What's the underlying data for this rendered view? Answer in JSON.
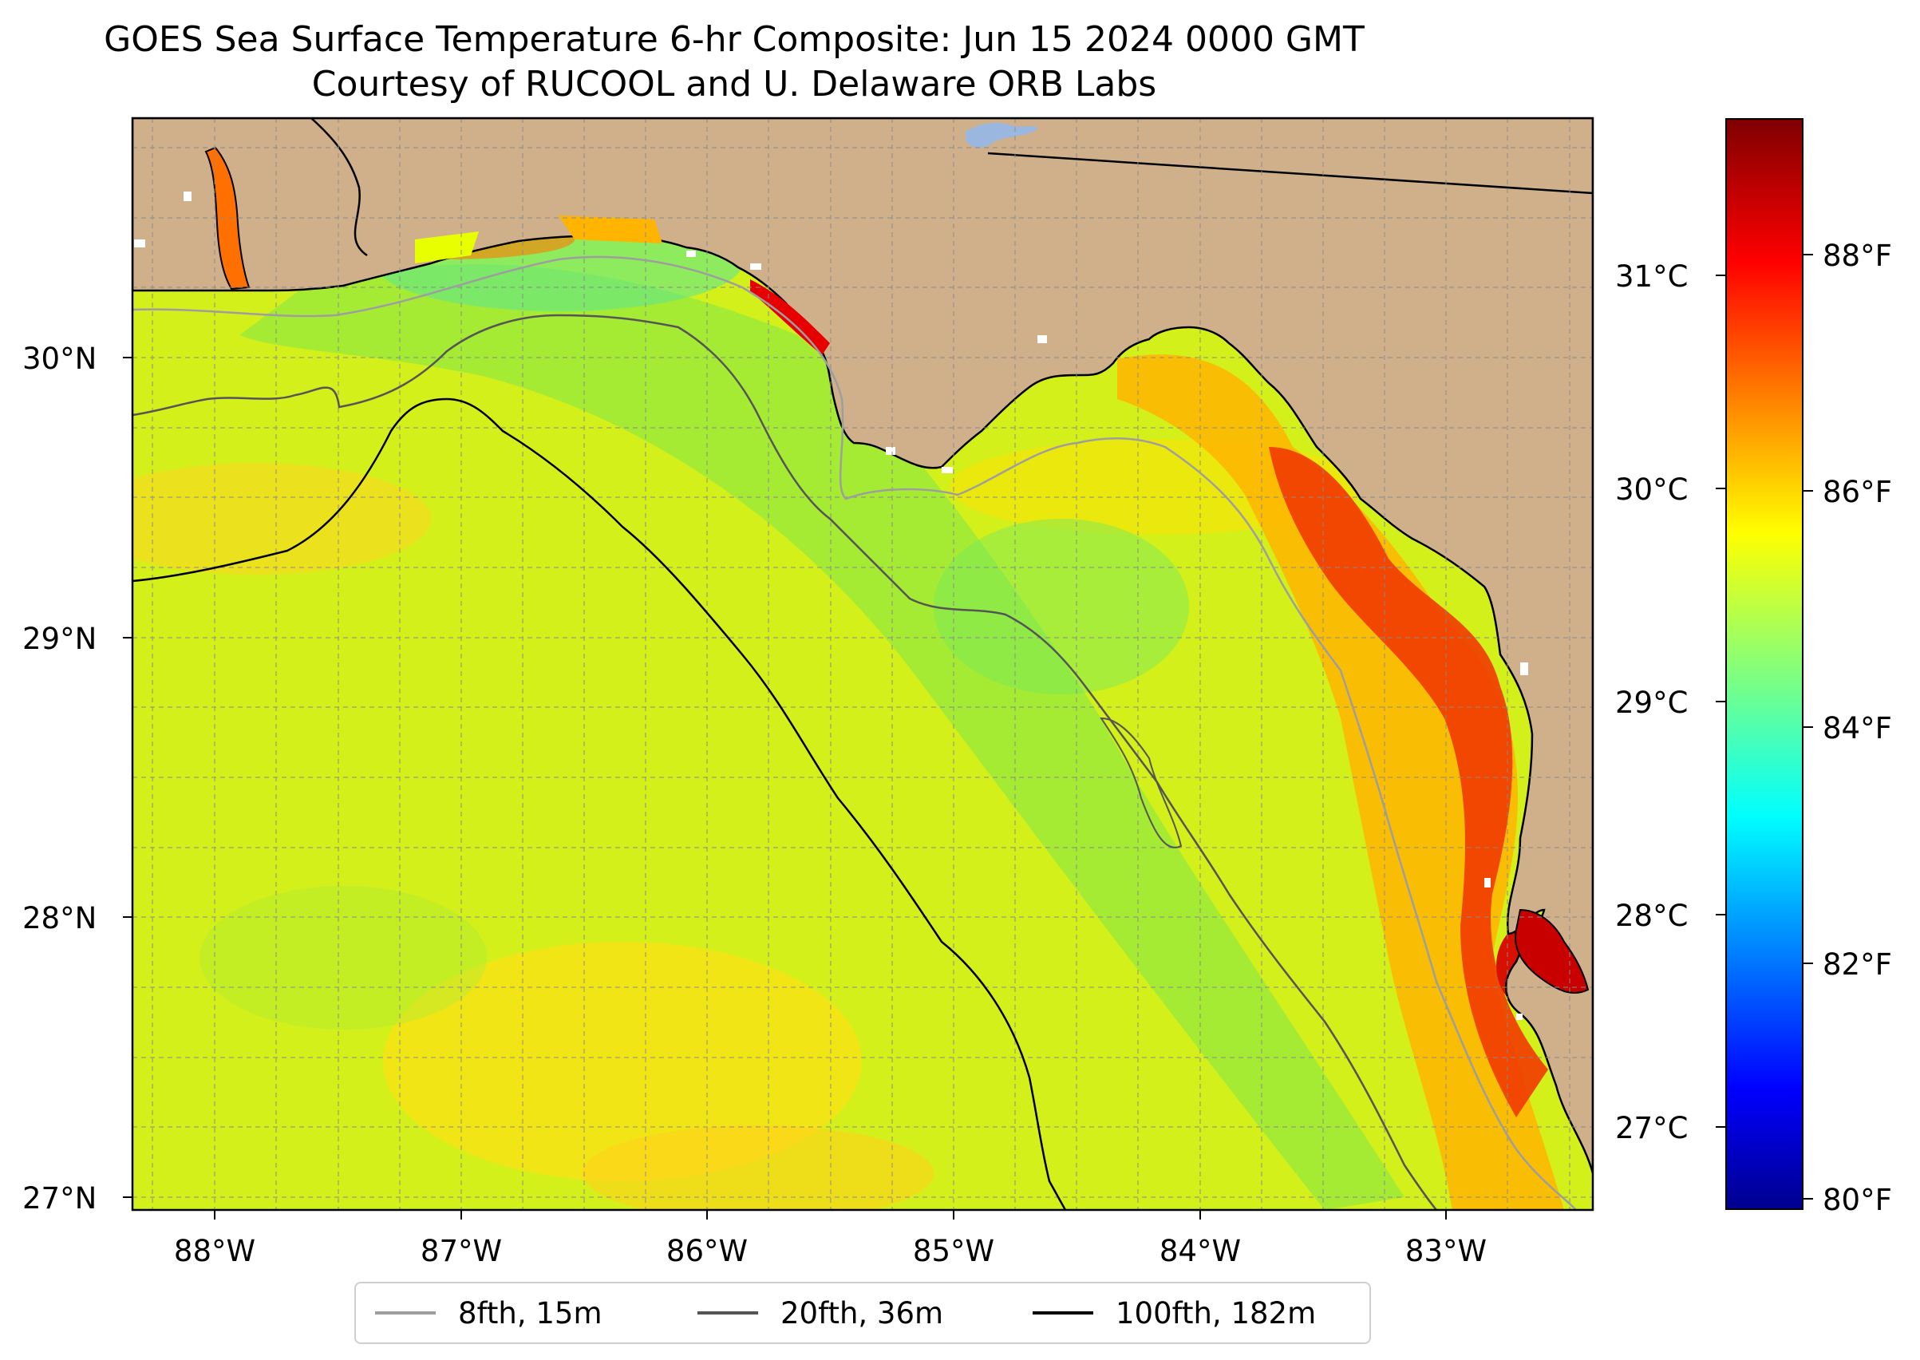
{
  "title": {
    "line1": "GOES Sea Surface Temperature 6-hr Composite: Jun 15 2024 0000 GMT",
    "line2": "Courtesy of RUCOOL and U. Delaware ORB Labs"
  },
  "map": {
    "lon_range": [
      -88.33,
      -82.4
    ],
    "lat_range": [
      26.94,
      30.85
    ],
    "x_ticks": [
      {
        "lon": -88,
        "label": "88°W"
      },
      {
        "lon": -87,
        "label": "87°W"
      },
      {
        "lon": -86,
        "label": "86°W"
      },
      {
        "lon": -85,
        "label": "85°W"
      },
      {
        "lon": -84,
        "label": "84°W"
      },
      {
        "lon": -83,
        "label": "83°W"
      }
    ],
    "y_ticks": [
      {
        "lat": 30,
        "label": "30°N"
      },
      {
        "lat": 29,
        "label": "29°N"
      },
      {
        "lat": 28,
        "label": "28°N"
      },
      {
        "lat": 27,
        "label": "27°N"
      }
    ],
    "land_color": "#cfb08a",
    "coast_color": "#000000",
    "grid": true,
    "gridline_spacing_deg": 0.25
  },
  "legend": {
    "items": [
      {
        "label": "8fth, 15m",
        "color": "#9e9e9e"
      },
      {
        "label": "20fth, 36m",
        "color": "#555555"
      },
      {
        "label": "100fth, 182m",
        "color": "#000000"
      }
    ]
  },
  "colorbar": {
    "celsius_ticks": [
      {
        "value": 31,
        "label": "31°C"
      },
      {
        "value": 30,
        "label": "30°C"
      },
      {
        "value": 29,
        "label": "29°C"
      },
      {
        "value": 28,
        "label": "28°C"
      },
      {
        "value": 27,
        "label": "27°C"
      }
    ],
    "fahrenheit_ticks": [
      {
        "value": 88,
        "label": "88°F"
      },
      {
        "value": 86,
        "label": "86°F"
      },
      {
        "value": 84,
        "label": "84°F"
      },
      {
        "value": 82,
        "label": "82°F"
      },
      {
        "value": 80,
        "label": "80°F"
      }
    ],
    "f_range": [
      79.8,
      90.0
    ],
    "colormap": "jet"
  },
  "icons": {
    "gridline": "dashed-line",
    "land": "tan-fill"
  }
}
